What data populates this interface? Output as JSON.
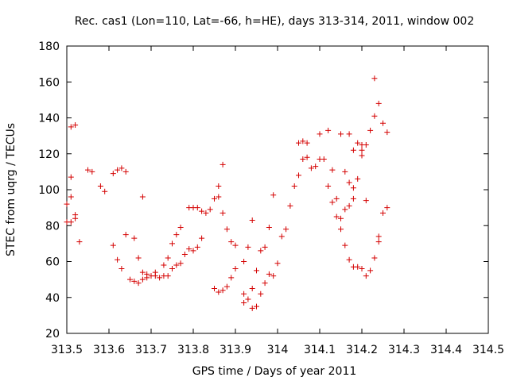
{
  "chart_data": {
    "type": "scatter",
    "title": "Rec. cas1 (Lon=110, Lat=-66, h=HE), days 313-314, 2011, window 002",
    "xlabel": "GPS time / Days of year 2011",
    "ylabel": "STEC from uqrg / TECUs",
    "xlim": [
      313.5,
      314.5
    ],
    "ylim": [
      20,
      180
    ],
    "xticks": [
      "313.5",
      "313.6",
      "313.7",
      "313.8",
      "313.9",
      "314",
      "314.1",
      "314.2",
      "314.3",
      "314.4",
      "314.5"
    ],
    "yticks": [
      "20",
      "40",
      "60",
      "80",
      "100",
      "120",
      "140",
      "160",
      "180"
    ],
    "grid": false,
    "marker": "+",
    "color": "#d40000",
    "points": [
      [
        313.5,
        92
      ],
      [
        313.5,
        82
      ],
      [
        313.51,
        135
      ],
      [
        313.51,
        107
      ],
      [
        313.51,
        96
      ],
      [
        313.51,
        82
      ],
      [
        313.52,
        136
      ],
      [
        313.52,
        86
      ],
      [
        313.52,
        84
      ],
      [
        313.53,
        71
      ],
      [
        313.55,
        111
      ],
      [
        313.56,
        110
      ],
      [
        313.58,
        102
      ],
      [
        313.59,
        99
      ],
      [
        313.61,
        109
      ],
      [
        313.61,
        69
      ],
      [
        313.62,
        111
      ],
      [
        313.62,
        61
      ],
      [
        313.63,
        112
      ],
      [
        313.63,
        56
      ],
      [
        313.64,
        110
      ],
      [
        313.64,
        75
      ],
      [
        313.65,
        50
      ],
      [
        313.66,
        73
      ],
      [
        313.66,
        49
      ],
      [
        313.67,
        62
      ],
      [
        313.67,
        48
      ],
      [
        313.68,
        96
      ],
      [
        313.68,
        54
      ],
      [
        313.68,
        50
      ],
      [
        313.69,
        53
      ],
      [
        313.69,
        51
      ],
      [
        313.7,
        52
      ],
      [
        313.71,
        52
      ],
      [
        313.71,
        54
      ],
      [
        313.72,
        51
      ],
      [
        313.73,
        58
      ],
      [
        313.73,
        52
      ],
      [
        313.74,
        62
      ],
      [
        313.74,
        52
      ],
      [
        313.75,
        70
      ],
      [
        313.75,
        56
      ],
      [
        313.76,
        75
      ],
      [
        313.76,
        58
      ],
      [
        313.77,
        79
      ],
      [
        313.77,
        59
      ],
      [
        313.78,
        64
      ],
      [
        313.79,
        90
      ],
      [
        313.79,
        67
      ],
      [
        313.8,
        90
      ],
      [
        313.8,
        66
      ],
      [
        313.81,
        90
      ],
      [
        313.81,
        68
      ],
      [
        313.82,
        88
      ],
      [
        313.82,
        73
      ],
      [
        313.83,
        87
      ],
      [
        313.84,
        89
      ],
      [
        313.85,
        95
      ],
      [
        313.85,
        45
      ],
      [
        313.86,
        102
      ],
      [
        313.86,
        96
      ],
      [
        313.86,
        43
      ],
      [
        313.87,
        114
      ],
      [
        313.87,
        87
      ],
      [
        313.87,
        44
      ],
      [
        313.88,
        78
      ],
      [
        313.88,
        46
      ],
      [
        313.89,
        71
      ],
      [
        313.89,
        51
      ],
      [
        313.9,
        69
      ],
      [
        313.9,
        56
      ],
      [
        313.92,
        60
      ],
      [
        313.92,
        42
      ],
      [
        313.92,
        37
      ],
      [
        313.93,
        68
      ],
      [
        313.93,
        39
      ],
      [
        313.94,
        83
      ],
      [
        313.94,
        45
      ],
      [
        313.94,
        34
      ],
      [
        313.95,
        55
      ],
      [
        313.95,
        35
      ],
      [
        313.96,
        66
      ],
      [
        313.96,
        42
      ],
      [
        313.97,
        68
      ],
      [
        313.97,
        48
      ],
      [
        313.98,
        79
      ],
      [
        313.98,
        53
      ],
      [
        313.99,
        97
      ],
      [
        313.99,
        52
      ],
      [
        314.0,
        59
      ],
      [
        314.01,
        74
      ],
      [
        314.02,
        78
      ],
      [
        314.03,
        91
      ],
      [
        314.04,
        102
      ],
      [
        314.05,
        126
      ],
      [
        314.05,
        108
      ],
      [
        314.06,
        127
      ],
      [
        314.06,
        117
      ],
      [
        314.07,
        126
      ],
      [
        314.07,
        118
      ],
      [
        314.08,
        112
      ],
      [
        314.09,
        113
      ],
      [
        314.1,
        131
      ],
      [
        314.1,
        117
      ],
      [
        314.11,
        117
      ],
      [
        314.12,
        133
      ],
      [
        314.12,
        102
      ],
      [
        314.13,
        111
      ],
      [
        314.13,
        93
      ],
      [
        314.14,
        95
      ],
      [
        314.14,
        85
      ],
      [
        314.15,
        131
      ],
      [
        314.15,
        84
      ],
      [
        314.15,
        78
      ],
      [
        314.16,
        110
      ],
      [
        314.16,
        89
      ],
      [
        314.16,
        69
      ],
      [
        314.17,
        131
      ],
      [
        314.17,
        104
      ],
      [
        314.17,
        91
      ],
      [
        314.17,
        61
      ],
      [
        314.18,
        122
      ],
      [
        314.18,
        101
      ],
      [
        314.18,
        95
      ],
      [
        314.18,
        57
      ],
      [
        314.19,
        126
      ],
      [
        314.19,
        106
      ],
      [
        314.19,
        57
      ],
      [
        314.2,
        125
      ],
      [
        314.2,
        122
      ],
      [
        314.2,
        119
      ],
      [
        314.2,
        56
      ],
      [
        314.21,
        125
      ],
      [
        314.21,
        94
      ],
      [
        314.21,
        52
      ],
      [
        314.22,
        133
      ],
      [
        314.22,
        55
      ],
      [
        314.23,
        141
      ],
      [
        314.23,
        62
      ],
      [
        314.23,
        162
      ],
      [
        314.24,
        148
      ],
      [
        314.24,
        74
      ],
      [
        314.24,
        71
      ],
      [
        314.25,
        137
      ],
      [
        314.25,
        87
      ],
      [
        314.26,
        132
      ],
      [
        314.26,
        90
      ]
    ]
  }
}
